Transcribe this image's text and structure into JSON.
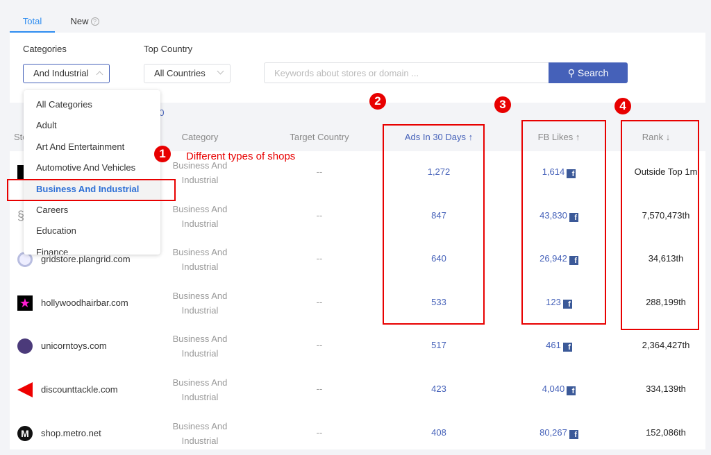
{
  "tabs": [
    {
      "label": "Total",
      "active": true
    },
    {
      "label": "New",
      "help_icon": "question-circle-icon"
    }
  ],
  "filters": {
    "categories_label": "Categories",
    "categories_value": "And Industrial",
    "country_label": "Top Country",
    "country_value": "All Countries",
    "search_placeholder": "Keywords about stores or domain ...",
    "search_button": "Search"
  },
  "results_count_fragment": "00",
  "dropdown": {
    "items": [
      "All Categories",
      "Adult",
      "Art And Entertainment",
      "Automotive And Vehicles",
      "Business And Industrial",
      "Careers",
      "Education",
      "Finance"
    ],
    "selected": "Business And Industrial"
  },
  "table": {
    "headers": {
      "store": "Store",
      "category": "Category",
      "target_country": "Target Country",
      "ads": "Ads In 30 Days ↑",
      "fb_likes": "FB Likes ↑",
      "rank": "Rank ↓"
    },
    "rows": [
      {
        "store": "",
        "category": "Business And Industrial",
        "target_country": "--",
        "ads": "1,272",
        "fb_likes": "1,614",
        "rank": "Outside Top 1m"
      },
      {
        "store": "",
        "category": "Business And Industrial",
        "target_country": "--",
        "ads": "847",
        "fb_likes": "43,830",
        "rank": "7,570,473th"
      },
      {
        "store": "gridstore.plangrid.com",
        "category": "Business And Industrial",
        "target_country": "--",
        "ads": "640",
        "fb_likes": "26,942",
        "rank": "34,613th"
      },
      {
        "store": "hollywoodhairbar.com",
        "category": "Business And Industrial",
        "target_country": "--",
        "ads": "533",
        "fb_likes": "123",
        "rank": "288,199th"
      },
      {
        "store": "unicorntoys.com",
        "category": "Business And Industrial",
        "target_country": "--",
        "ads": "517",
        "fb_likes": "461",
        "rank": "2,364,427th"
      },
      {
        "store": "discounttackle.com",
        "category": "Business And Industrial",
        "target_country": "--",
        "ads": "423",
        "fb_likes": "4,040",
        "rank": "334,139th"
      },
      {
        "store": "shop.metro.net",
        "category": "Business And Industrial",
        "target_country": "--",
        "ads": "408",
        "fb_likes": "80,267",
        "rank": "152,086th"
      }
    ]
  },
  "annotations": {
    "1": "1",
    "note_1": "Different types of shops",
    "2": "2",
    "3": "3",
    "4": "4"
  },
  "colors": {
    "accent": "#2d8cf0",
    "button": "#4561b9",
    "annotation": "#e80000",
    "facebook": "#3b5998"
  }
}
